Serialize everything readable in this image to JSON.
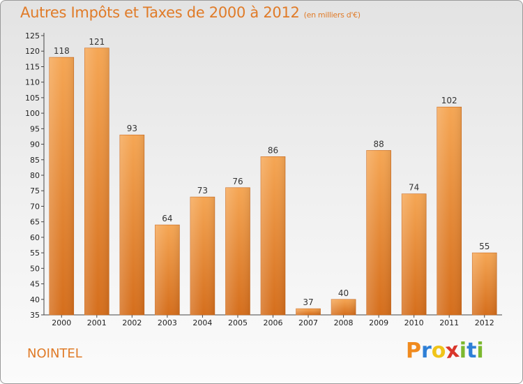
{
  "title": "Autres Impôts et Taxes de 2000 à 2012",
  "unit": "(en milliers d'€)",
  "commune": "NOINTEL",
  "logo": {
    "letters": [
      "P",
      "r",
      "o",
      "x",
      "i",
      "t",
      "i"
    ],
    "colors": [
      "#f08a1e",
      "#2e7fd6",
      "#f0c419",
      "#d9362b",
      "#7cb82f",
      "#2e7fd6",
      "#7cb82f"
    ]
  },
  "colors": {
    "bar": "#f0a04b",
    "bar_dark": "#d9731f",
    "text": "#e07b28"
  },
  "chart_data": {
    "type": "bar",
    "title": "Autres Impôts et Taxes de 2000 à 2012",
    "subtitle": "(en milliers d'€)",
    "categories": [
      "2000",
      "2001",
      "2002",
      "2003",
      "2004",
      "2005",
      "2006",
      "2007",
      "2008",
      "2009",
      "2010",
      "2011",
      "2012"
    ],
    "values": [
      118,
      121,
      93,
      64,
      73,
      76,
      86,
      37,
      40,
      88,
      74,
      102,
      55
    ],
    "ylim": [
      35,
      125
    ],
    "yticks": [
      35,
      40,
      45,
      50,
      55,
      60,
      65,
      70,
      75,
      80,
      85,
      90,
      95,
      100,
      105,
      110,
      115,
      120,
      125
    ],
    "grid": false,
    "xlabel": "",
    "ylabel": ""
  }
}
